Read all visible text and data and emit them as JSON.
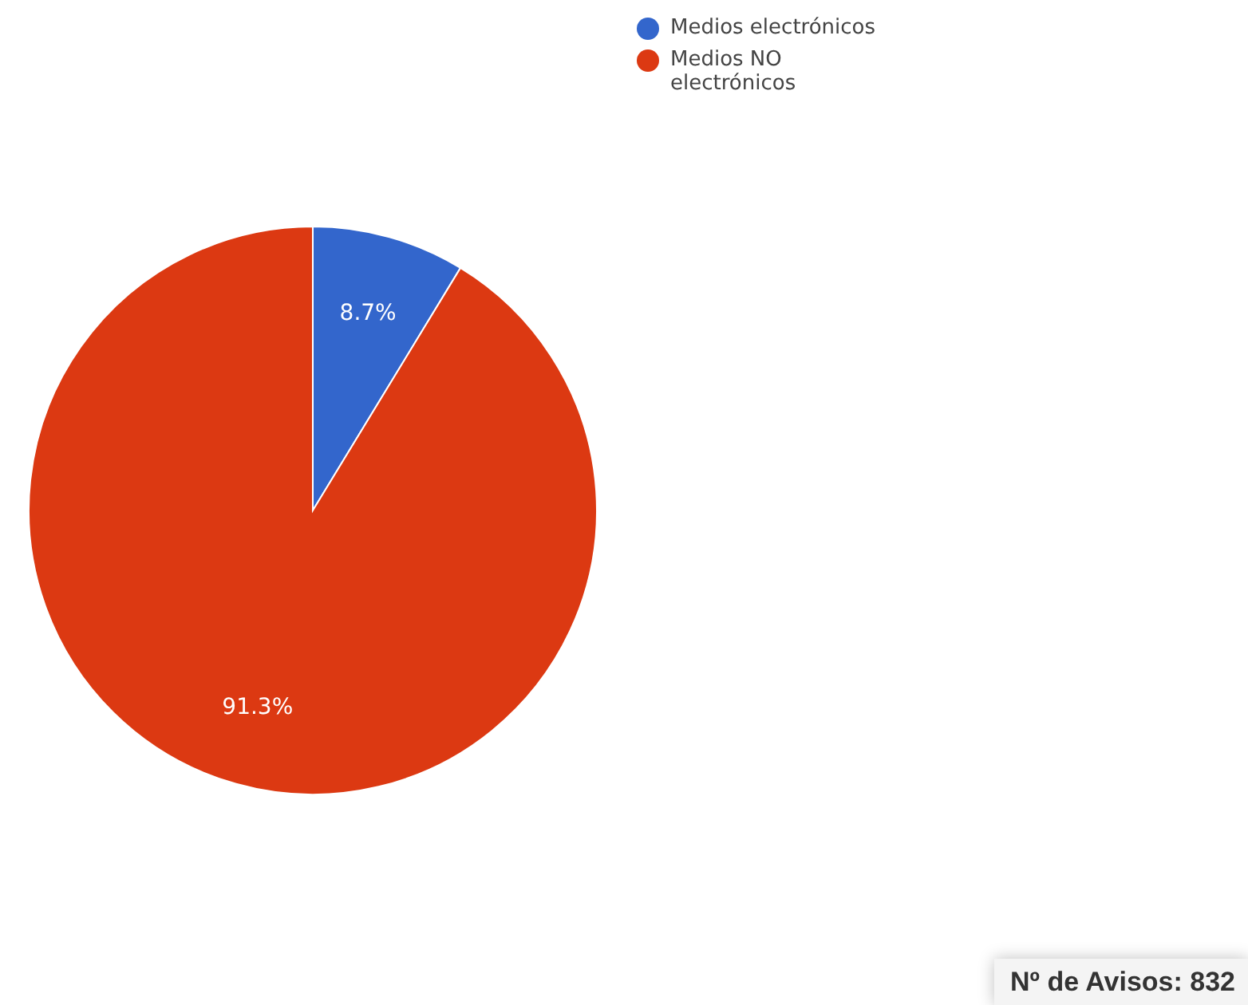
{
  "chart_data": {
    "type": "pie",
    "categories": [
      "Medios electrónicos",
      "Medios NO electrónicos"
    ],
    "values": [
      8.7,
      91.3
    ],
    "colors": [
      "#3366cc",
      "#dc3912"
    ],
    "value_labels": [
      "8.7%",
      "91.3%"
    ],
    "legend": "top right",
    "annotations": [
      "Nº de Avisos: 832"
    ]
  }
}
